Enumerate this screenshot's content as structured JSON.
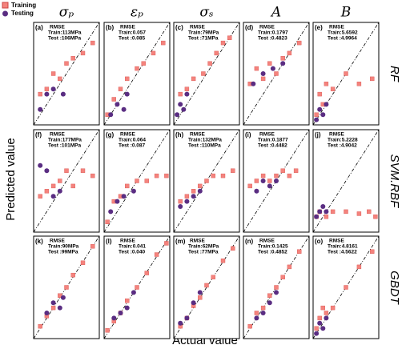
{
  "figure": {
    "column_titles": [
      "σₚ",
      "εₚ",
      "σₛ",
      "A",
      "B"
    ],
    "row_titles": [
      "RF",
      "SVM.RBF",
      "GBDT"
    ],
    "xlabel": "Actual value",
    "ylabel": "Predicted value"
  },
  "chart_data": [
    {
      "type": "scatter",
      "label": "(a)",
      "annotations": [
        "RMSE",
        "Train:113MPa",
        "Test :106MPa"
      ],
      "xlim": [
        0,
        1
      ],
      "ylim": [
        0,
        1
      ],
      "series": [
        {
          "name": "Training",
          "color": "#f4837d",
          "x": [
            0.1,
            0.2,
            0.3,
            0.4,
            0.5,
            0.6,
            0.75,
            0.9
          ],
          "values": [
            0.3,
            0.35,
            0.5,
            0.45,
            0.6,
            0.65,
            0.7,
            0.8
          ]
        },
        {
          "name": "Testing",
          "color": "#5a2d82",
          "x": [
            0.1,
            0.2,
            0.3,
            0.45
          ],
          "values": [
            0.15,
            0.3,
            0.35,
            0.3
          ]
        }
      ]
    },
    {
      "type": "scatter",
      "label": "(b)",
      "annotations": [
        "RMSE",
        "Train:0.057",
        "Test :0.085"
      ],
      "xlim": [
        0,
        1
      ],
      "ylim": [
        0,
        1
      ],
      "series": [
        {
          "color": "#f4837d",
          "x": [
            0.05,
            0.15,
            0.25,
            0.35,
            0.5,
            0.6,
            0.75,
            0.9
          ],
          "values": [
            0.1,
            0.25,
            0.35,
            0.45,
            0.55,
            0.6,
            0.7,
            0.8
          ]
        },
        {
          "color": "#5a2d82",
          "x": [
            0.1,
            0.2,
            0.3,
            0.35
          ],
          "values": [
            0.1,
            0.2,
            0.15,
            0.3
          ]
        }
      ]
    },
    {
      "type": "scatter",
      "label": "(c)",
      "annotations": [
        "RMSE",
        "Train:79MPa",
        "Test :71MPa"
      ],
      "xlim": [
        0,
        1
      ],
      "ylim": [
        0,
        1
      ],
      "series": [
        {
          "color": "#f4837d",
          "x": [
            0.1,
            0.2,
            0.3,
            0.45,
            0.55,
            0.65,
            0.75,
            0.85
          ],
          "values": [
            0.3,
            0.35,
            0.45,
            0.5,
            0.6,
            0.7,
            0.8,
            0.85
          ]
        },
        {
          "color": "#5a2d82",
          "x": [
            0.05,
            0.1,
            0.15,
            0.2
          ],
          "values": [
            0.1,
            0.2,
            0.15,
            0.3
          ]
        }
      ]
    },
    {
      "type": "scatter",
      "label": "(d)",
      "annotations": [
        "RMSE",
        "Train:0.1797",
        "Test :0.4823"
      ],
      "xlim": [
        0,
        1
      ],
      "ylim": [
        0,
        1
      ],
      "series": [
        {
          "color": "#f4837d",
          "x": [
            0.1,
            0.2,
            0.3,
            0.4,
            0.5,
            0.6,
            0.7,
            0.85
          ],
          "values": [
            0.4,
            0.55,
            0.45,
            0.6,
            0.5,
            0.65,
            0.7,
            0.8
          ]
        },
        {
          "color": "#5a2d82",
          "x": [
            0.15,
            0.3,
            0.45,
            0.6
          ],
          "values": [
            0.4,
            0.5,
            0.55,
            0.6
          ]
        }
      ]
    },
    {
      "type": "scatter",
      "label": "(e)",
      "annotations": [
        "RMSE",
        "Train:5.6592",
        "Test :4.9964"
      ],
      "xlim": [
        0,
        1
      ],
      "ylim": [
        0,
        1
      ],
      "series": [
        {
          "color": "#f4837d",
          "x": [
            0.05,
            0.1,
            0.15,
            0.2,
            0.3,
            0.5,
            0.7,
            0.9
          ],
          "values": [
            0.1,
            0.3,
            0.2,
            0.4,
            0.35,
            0.5,
            0.4,
            0.45
          ]
        },
        {
          "color": "#5a2d82",
          "x": [
            0.05,
            0.1,
            0.15,
            0.2
          ],
          "values": [
            0.05,
            0.15,
            0.1,
            0.2
          ]
        }
      ]
    },
    {
      "type": "scatter",
      "label": "(f)",
      "annotations": [
        "RMSE",
        "Train:177MPa",
        "Test :101MPa"
      ],
      "xlim": [
        0,
        1
      ],
      "ylim": [
        0,
        1
      ],
      "series": [
        {
          "color": "#f4837d",
          "x": [
            0.1,
            0.2,
            0.3,
            0.4,
            0.5,
            0.6,
            0.75,
            0.9
          ],
          "values": [
            0.35,
            0.4,
            0.45,
            0.5,
            0.6,
            0.45,
            0.6,
            0.55
          ]
        },
        {
          "color": "#5a2d82",
          "x": [
            0.1,
            0.2,
            0.3,
            0.4
          ],
          "values": [
            0.65,
            0.6,
            0.35,
            0.4
          ]
        }
      ]
    },
    {
      "type": "scatter",
      "label": "(g)",
      "annotations": [
        "RMSE",
        "Train:0.064",
        "Test :0.087"
      ],
      "xlim": [
        0,
        1
      ],
      "ylim": [
        0,
        1
      ],
      "series": [
        {
          "color": "#f4837d",
          "x": [
            0.05,
            0.15,
            0.25,
            0.35,
            0.5,
            0.65,
            0.8,
            0.95
          ],
          "values": [
            0.1,
            0.3,
            0.35,
            0.45,
            0.5,
            0.5,
            0.55,
            0.55
          ]
        },
        {
          "color": "#5a2d82",
          "x": [
            0.1,
            0.2,
            0.3,
            0.45
          ],
          "values": [
            0.2,
            0.3,
            0.35,
            0.4
          ]
        }
      ]
    },
    {
      "type": "scatter",
      "label": "(h)",
      "annotations": [
        "RMSE",
        "Train:132MPa",
        "Test :110MPa"
      ],
      "xlim": [
        0,
        1
      ],
      "ylim": [
        0,
        1
      ],
      "series": [
        {
          "color": "#f4837d",
          "x": [
            0.1,
            0.2,
            0.3,
            0.4,
            0.5,
            0.6,
            0.75,
            0.9
          ],
          "values": [
            0.3,
            0.35,
            0.4,
            0.45,
            0.5,
            0.55,
            0.55,
            0.6
          ]
        },
        {
          "color": "#5a2d82",
          "x": [
            0.1,
            0.2,
            0.3,
            0.4
          ],
          "values": [
            0.25,
            0.3,
            0.35,
            0.4
          ]
        }
      ]
    },
    {
      "type": "scatter",
      "label": "(i)",
      "annotations": [
        "RMSE",
        "Train:0.1877",
        "Test :0.4482"
      ],
      "xlim": [
        0,
        1
      ],
      "ylim": [
        0,
        1
      ],
      "series": [
        {
          "color": "#f4837d",
          "x": [
            0.1,
            0.2,
            0.3,
            0.4,
            0.5,
            0.6,
            0.7,
            0.8
          ],
          "values": [
            0.45,
            0.5,
            0.55,
            0.5,
            0.55,
            0.6,
            0.55,
            0.6
          ]
        },
        {
          "color": "#5a2d82",
          "x": [
            0.2,
            0.3,
            0.4,
            0.5
          ],
          "values": [
            0.4,
            0.5,
            0.45,
            0.5
          ]
        }
      ]
    },
    {
      "type": "scatter",
      "label": "(j)",
      "annotations": [
        "RMSE",
        "Train:5.2228",
        "Test :4.9042"
      ],
      "xlim": [
        0,
        1
      ],
      "ylim": [
        0,
        1
      ],
      "series": [
        {
          "color": "#f4837d",
          "x": [
            0.05,
            0.1,
            0.2,
            0.3,
            0.5,
            0.7,
            0.85,
            0.95
          ],
          "values": [
            0.15,
            0.2,
            0.15,
            0.2,
            0.2,
            0.18,
            0.2,
            0.15
          ]
        },
        {
          "color": "#5a2d82",
          "x": [
            0.05,
            0.1,
            0.15,
            0.2
          ],
          "values": [
            0.15,
            0.2,
            0.25,
            0.2
          ]
        }
      ]
    },
    {
      "type": "scatter",
      "label": "(k)",
      "annotations": [
        "RMSE",
        "Train:90MPa",
        "Test :99MPa"
      ],
      "xlim": [
        0,
        1
      ],
      "ylim": [
        0,
        1
      ],
      "series": [
        {
          "color": "#f4837d",
          "x": [
            0.1,
            0.2,
            0.3,
            0.4,
            0.5,
            0.6,
            0.75,
            0.9
          ],
          "values": [
            0.12,
            0.22,
            0.3,
            0.42,
            0.5,
            0.62,
            0.74,
            0.9
          ]
        },
        {
          "color": "#5a2d82",
          "x": [
            0.2,
            0.3,
            0.4,
            0.45
          ],
          "values": [
            0.25,
            0.35,
            0.3,
            0.4
          ]
        }
      ]
    },
    {
      "type": "scatter",
      "label": "(l)",
      "annotations": [
        "RMSE",
        "Train:0.041",
        "Test :0.040"
      ],
      "xlim": [
        0,
        1
      ],
      "ylim": [
        0,
        1
      ],
      "series": [
        {
          "color": "#f4837d",
          "x": [
            0.05,
            0.15,
            0.25,
            0.35,
            0.5,
            0.65,
            0.8,
            0.95
          ],
          "values": [
            0.08,
            0.17,
            0.25,
            0.37,
            0.5,
            0.64,
            0.82,
            0.93
          ]
        },
        {
          "color": "#5a2d82",
          "x": [
            0.15,
            0.25,
            0.35,
            0.45
          ],
          "values": [
            0.2,
            0.25,
            0.3,
            0.45
          ]
        }
      ]
    },
    {
      "type": "scatter",
      "label": "(m)",
      "annotations": [
        "RMSE",
        "Train:62MPa",
        "Test :77MPa"
      ],
      "xlim": [
        0,
        1
      ],
      "ylim": [
        0,
        1
      ],
      "series": [
        {
          "color": "#f4837d",
          "x": [
            0.1,
            0.2,
            0.3,
            0.4,
            0.5,
            0.6,
            0.75,
            0.9
          ],
          "values": [
            0.12,
            0.2,
            0.32,
            0.4,
            0.52,
            0.6,
            0.76,
            0.88
          ]
        },
        {
          "color": "#5a2d82",
          "x": [
            0.1,
            0.2,
            0.3,
            0.4
          ],
          "values": [
            0.15,
            0.2,
            0.35,
            0.45
          ]
        }
      ]
    },
    {
      "type": "scatter",
      "label": "(n)",
      "annotations": [
        "RMSE",
        "Train:0.1425",
        "Test :0.4852"
      ],
      "xlim": [
        0,
        1
      ],
      "ylim": [
        0,
        1
      ],
      "series": [
        {
          "color": "#f4837d",
          "x": [
            0.1,
            0.2,
            0.3,
            0.4,
            0.5,
            0.6,
            0.7,
            0.85
          ],
          "values": [
            0.12,
            0.25,
            0.3,
            0.42,
            0.5,
            0.6,
            0.7,
            0.85
          ]
        },
        {
          "color": "#5a2d82",
          "x": [
            0.2,
            0.3,
            0.4,
            0.5
          ],
          "values": [
            0.2,
            0.25,
            0.35,
            0.45
          ]
        }
      ]
    },
    {
      "type": "scatter",
      "label": "(o)",
      "annotations": [
        "RMSE",
        "Train:4.8161",
        "Test :4.5622"
      ],
      "xlim": [
        0,
        1
      ],
      "ylim": [
        0,
        1
      ],
      "series": [
        {
          "color": "#f4837d",
          "x": [
            0.05,
            0.1,
            0.15,
            0.2,
            0.3,
            0.5,
            0.7,
            0.9
          ],
          "values": [
            0.1,
            0.2,
            0.3,
            0.25,
            0.3,
            0.5,
            0.7,
            0.85
          ]
        },
        {
          "color": "#5a2d82",
          "x": [
            0.05,
            0.1,
            0.15,
            0.2
          ],
          "values": [
            0.05,
            0.15,
            0.1,
            0.2
          ]
        }
      ]
    }
  ]
}
